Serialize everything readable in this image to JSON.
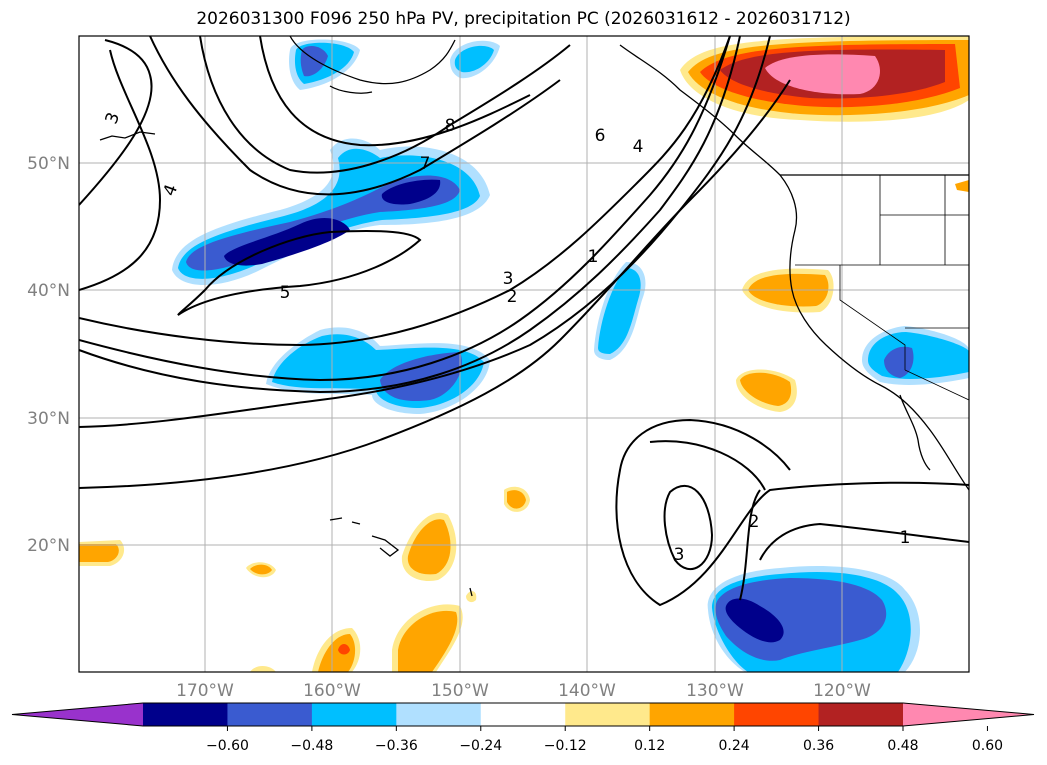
{
  "title": "2026031300 F096 250 hPa PV, precipitation PC (2026031612 - 2026031712)",
  "lat_labels": [
    "50°N",
    "40°N",
    "30°N",
    "20°N"
  ],
  "lon_labels": [
    "170°W",
    "160°W",
    "150°W",
    "140°W",
    "130°W",
    "120°W"
  ],
  "colorbar": {
    "ticks": [
      "−0.60",
      "−0.48",
      "−0.36",
      "−0.24",
      "−0.12",
      "0.12",
      "0.24",
      "0.36",
      "0.48",
      "0.60"
    ],
    "colors": [
      "#9932cc",
      "#00008b",
      "#3a5bd0",
      "#00bfff",
      "#b0e0ff",
      "#ffffff",
      "#ffe98c",
      "#ffa500",
      "#ff4500",
      "#b22222",
      "#ff88b0"
    ]
  },
  "contour_labels": [
    "3",
    "4",
    "8",
    "7",
    "6",
    "4",
    "5",
    "3",
    "2",
    "1",
    "2",
    "3",
    "1"
  ]
}
